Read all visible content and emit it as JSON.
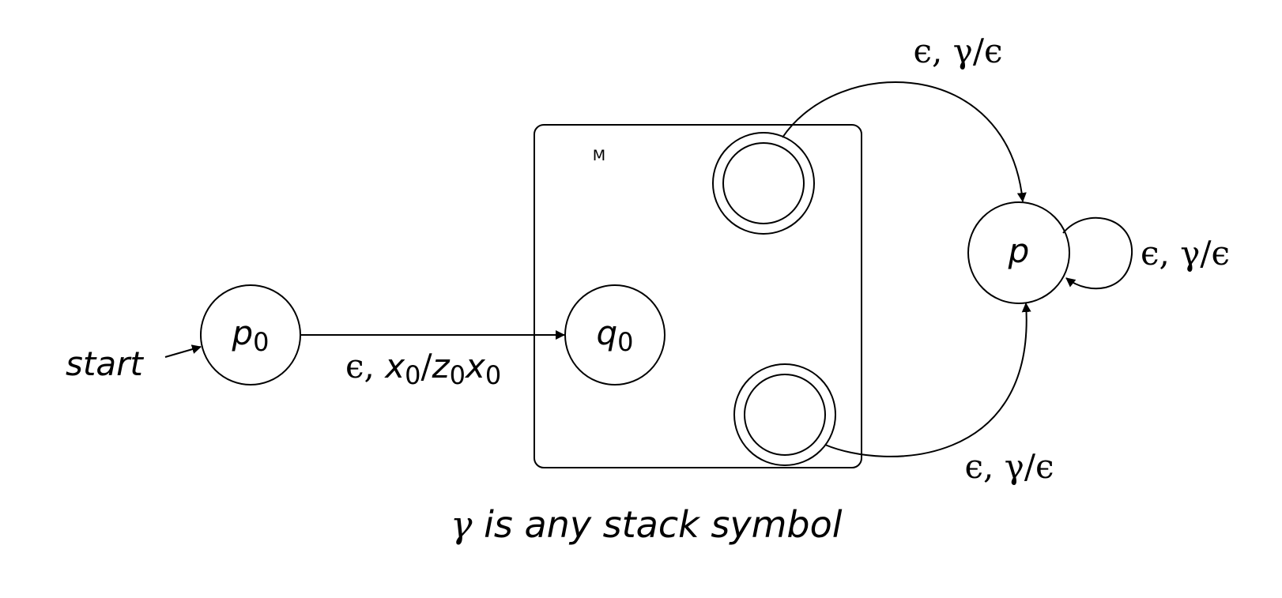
{
  "box": {
    "label": "M"
  },
  "states": {
    "p0": {
      "base": "p",
      "sub": "0"
    },
    "q0": {
      "base": "q",
      "sub": "0"
    },
    "p": {
      "base": "p"
    }
  },
  "start_label": "start",
  "transitions": {
    "p0_q0": {
      "eps": "ϵ, ",
      "x": "x",
      "x_sub": "0",
      "slash": "/",
      "z": "z",
      "z_sub": "0",
      "x2": "x",
      "x2_sub": "0"
    },
    "accept_top_p": "ϵ, γ/ϵ",
    "accept_bottom_p": "ϵ, γ/ϵ",
    "p_self": "ϵ, γ/ϵ"
  },
  "caption": {
    "gamma": "γ",
    "rest": " is any stack symbol"
  }
}
